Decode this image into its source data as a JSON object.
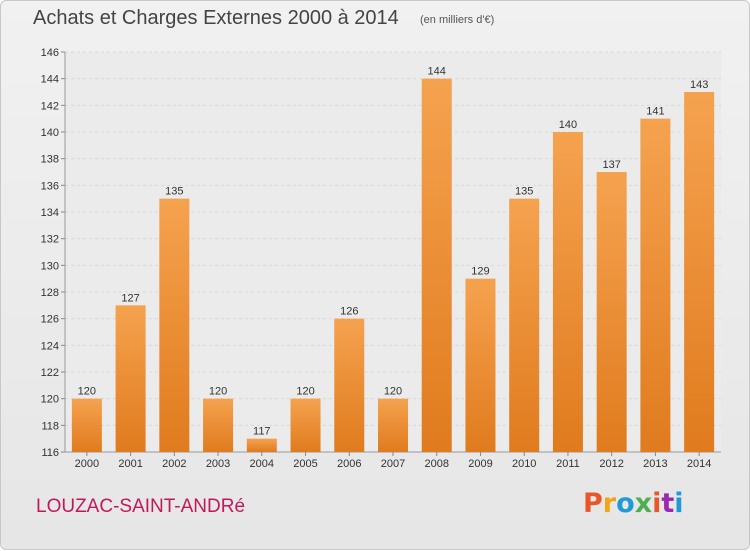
{
  "header": {
    "title": "Achats et Charges Externes 2000 à 2014",
    "subtitle": "(en milliers d'€)"
  },
  "footer": {
    "commune": "LOUZAC-SAINT-ANDRé",
    "logo_text": "Proxiti",
    "logo_colors": [
      "#e8562a",
      "#f2a516",
      "#1e9ad6",
      "#4caf50",
      "#e8562a",
      "#9c27b0",
      "#1e9ad6"
    ]
  },
  "chart_data": {
    "type": "bar",
    "title": "Achats et Charges Externes 2000 à 2014",
    "subtitle": "(en milliers d'€)",
    "categories": [
      "2000",
      "2001",
      "2002",
      "2003",
      "2004",
      "2005",
      "2006",
      "2007",
      "2008",
      "2009",
      "2010",
      "2011",
      "2012",
      "2013",
      "2014"
    ],
    "values": [
      120,
      127,
      135,
      120,
      117,
      120,
      126,
      120,
      144,
      129,
      135,
      140,
      137,
      141,
      143
    ],
    "ylim": [
      116,
      146
    ],
    "yticks": [
      116,
      118,
      120,
      122,
      124,
      126,
      128,
      130,
      132,
      134,
      136,
      138,
      140,
      142,
      144,
      146
    ],
    "grid": true,
    "bar_color_top": "#f5a24f",
    "bar_color_bottom": "#e07b1e"
  }
}
